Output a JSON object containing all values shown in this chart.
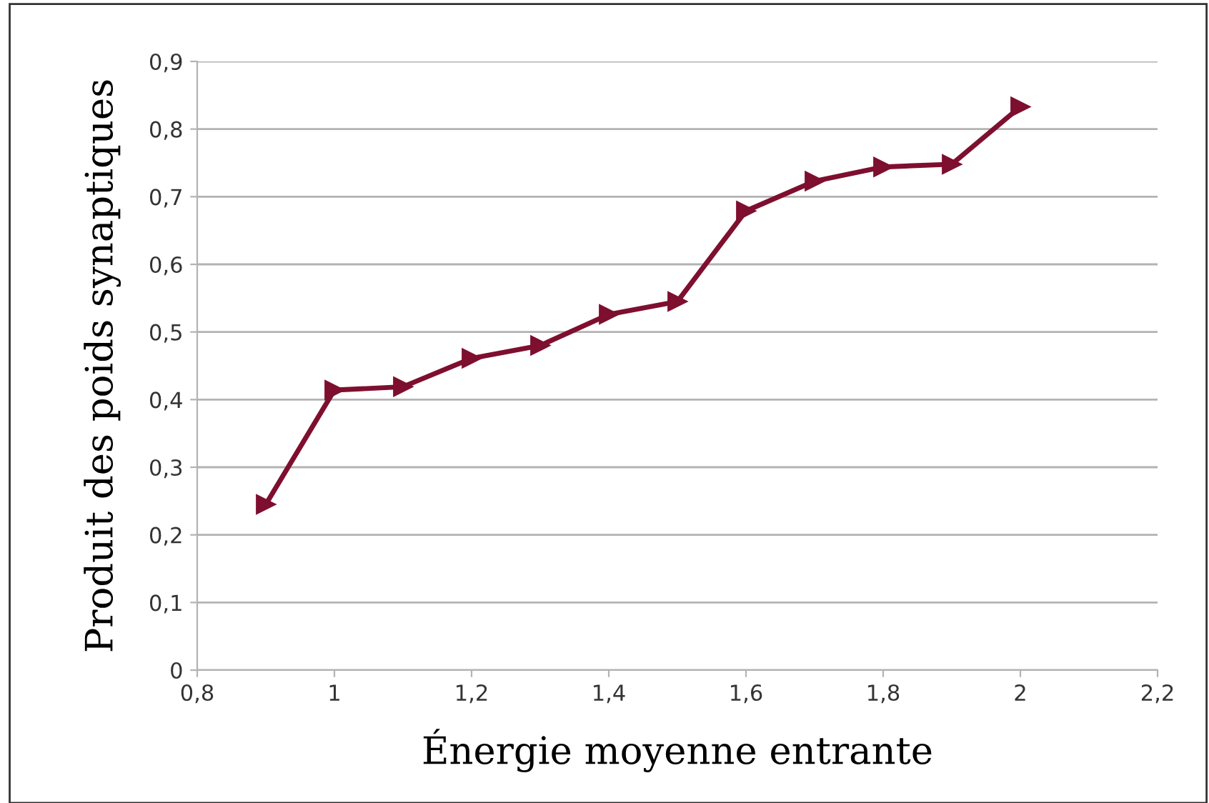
{
  "chart_data": {
    "type": "line",
    "xlabel": "Énergie moyenne entrante",
    "ylabel": "Produit des poids synaptiques",
    "x": [
      0.9,
      1.0,
      1.1,
      1.2,
      1.3,
      1.4,
      1.5,
      1.6,
      1.7,
      1.8,
      1.9,
      2.0
    ],
    "series": [
      {
        "color": "#7e0f2f",
        "values": [
          0.245,
          0.414,
          0.419,
          0.461,
          0.48,
          0.526,
          0.545,
          0.679,
          0.723,
          0.744,
          0.748,
          0.833
        ]
      }
    ],
    "xlim": [
      0.8,
      2.2
    ],
    "xticks": [
      {
        "value": 0.8,
        "label": "0,8"
      },
      1,
      {
        "value": 1.2,
        "label": "1,2"
      },
      {
        "value": 1.4,
        "label": "1,4"
      },
      {
        "value": 1.6,
        "label": "1,6"
      },
      {
        "value": 1.8,
        "label": "1,8"
      },
      2,
      {
        "value": 2.2,
        "label": "2,2"
      }
    ],
    "ylim": [
      0,
      0.9
    ],
    "yticks": [
      0,
      {
        "value": 0.1,
        "label": "0,1"
      },
      {
        "value": 0.2,
        "label": "0,2"
      },
      {
        "value": 0.3,
        "label": "0,3"
      },
      {
        "value": 0.4,
        "label": "0,4"
      },
      {
        "value": 0.5,
        "label": "0,5"
      },
      {
        "value": 0.6,
        "label": "0,6"
      },
      {
        "value": 0.7,
        "label": "0,7"
      },
      {
        "value": 0.8,
        "label": "0,8"
      },
      {
        "value": 0.9,
        "label": "0,9"
      }
    ],
    "grid": "y",
    "marker": "triangle",
    "line_style": "solid",
    "legend": false
  }
}
